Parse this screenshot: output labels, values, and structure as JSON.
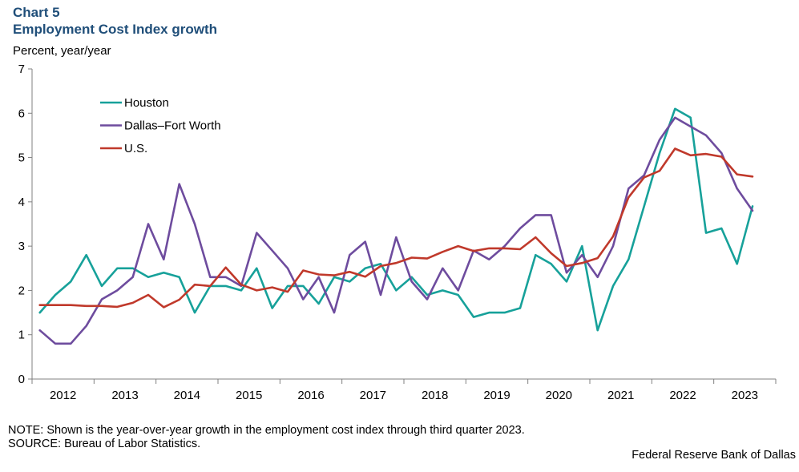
{
  "header": {
    "chart_number": "Chart 5",
    "title": "Employment Cost Index growth",
    "ylabel": "Percent, year/year"
  },
  "footer": {
    "note": "NOTE: Shown is the year-over-year growth in the employment cost index through third quarter 2023.",
    "source": "SOURCE: Bureau of Labor Statistics.",
    "credit": "Federal Reserve Bank of Dallas"
  },
  "chart_data": {
    "type": "line",
    "title": "Employment Cost Index growth",
    "ylabel": "Percent, year/year",
    "xlabel": "",
    "ylim": [
      0,
      7
    ],
    "yticks": [
      "0",
      "1",
      "2",
      "3",
      "4",
      "5",
      "6",
      "7"
    ],
    "year_labels": [
      "2012",
      "2013",
      "2014",
      "2015",
      "2016",
      "2017",
      "2018",
      "2019",
      "2020",
      "2021",
      "2022",
      "2023"
    ],
    "x_quarters": [
      "2012Q1",
      "2012Q2",
      "2012Q3",
      "2012Q4",
      "2013Q1",
      "2013Q2",
      "2013Q3",
      "2013Q4",
      "2014Q1",
      "2014Q2",
      "2014Q3",
      "2014Q4",
      "2015Q1",
      "2015Q2",
      "2015Q3",
      "2015Q4",
      "2016Q1",
      "2016Q2",
      "2016Q3",
      "2016Q4",
      "2017Q1",
      "2017Q2",
      "2017Q3",
      "2017Q4",
      "2018Q1",
      "2018Q2",
      "2018Q3",
      "2018Q4",
      "2019Q1",
      "2019Q2",
      "2019Q3",
      "2019Q4",
      "2020Q1",
      "2020Q2",
      "2020Q3",
      "2020Q4",
      "2021Q1",
      "2021Q2",
      "2021Q3",
      "2021Q4",
      "2022Q1",
      "2022Q2",
      "2022Q3",
      "2022Q4",
      "2023Q1",
      "2023Q2",
      "2023Q3"
    ],
    "grid": false,
    "legend_position": "top-left",
    "series": [
      {
        "name": "Houston",
        "color": "#17a19a",
        "values": [
          1.5,
          1.9,
          2.2,
          2.8,
          2.1,
          2.5,
          2.5,
          2.3,
          2.4,
          2.3,
          1.5,
          2.1,
          2.1,
          2.0,
          2.5,
          1.6,
          2.1,
          2.1,
          1.7,
          2.3,
          2.2,
          2.5,
          2.6,
          2.0,
          2.3,
          1.9,
          2.0,
          1.9,
          1.4,
          1.5,
          1.5,
          1.6,
          2.8,
          2.6,
          2.2,
          3.0,
          1.1,
          2.1,
          2.7,
          3.9,
          5.1,
          6.1,
          5.9,
          3.3,
          3.4,
          2.6,
          3.9
        ]
      },
      {
        "name": "Dallas–Fort Worth",
        "color": "#6e4c9e",
        "values": [
          1.1,
          0.8,
          0.8,
          1.2,
          1.8,
          2.0,
          2.3,
          3.5,
          2.7,
          4.4,
          3.5,
          2.3,
          2.3,
          2.1,
          3.3,
          2.9,
          2.5,
          1.8,
          2.3,
          1.5,
          2.8,
          3.1,
          1.9,
          3.2,
          2.2,
          1.8,
          2.5,
          2.0,
          2.9,
          2.7,
          3.0,
          3.4,
          3.7,
          3.7,
          2.4,
          2.8,
          2.3,
          3.0,
          4.3,
          4.6,
          5.4,
          5.9,
          5.7,
          5.5,
          5.1,
          4.3,
          3.8
        ]
      },
      {
        "name": "U.S.",
        "color": "#c0392b",
        "values": [
          1.67,
          1.67,
          1.67,
          1.65,
          1.65,
          1.63,
          1.72,
          1.9,
          1.62,
          1.79,
          2.13,
          2.1,
          2.52,
          2.13,
          2.0,
          2.07,
          1.97,
          2.45,
          2.36,
          2.34,
          2.42,
          2.31,
          2.55,
          2.62,
          2.74,
          2.72,
          2.87,
          3.0,
          2.89,
          2.95,
          2.95,
          2.93,
          3.2,
          2.84,
          2.55,
          2.62,
          2.73,
          3.22,
          4.1,
          4.55,
          4.7,
          5.2,
          5.05,
          5.08,
          5.02,
          4.62,
          4.57
        ]
      }
    ]
  }
}
